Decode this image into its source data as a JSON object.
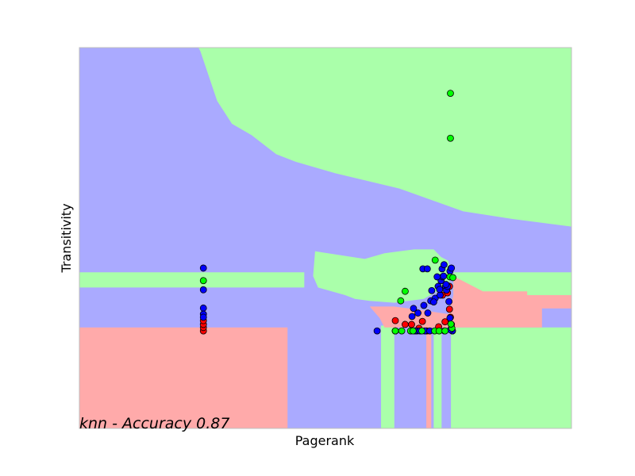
{
  "chart_data": {
    "type": "scatter",
    "title": "",
    "xlabel": "Pagerank",
    "ylabel": "Transitivity",
    "annotation": "knn - Accuracy 0.87",
    "xlim": [
      0,
      100
    ],
    "ylim": [
      0,
      100
    ],
    "ticks_visible": false,
    "grid": false,
    "legend": "none",
    "region_colors": {
      "red": "#ffaaaa",
      "blue": "#aaaaff",
      "green": "#aaffaa"
    },
    "frame_color": "#bfbfbf",
    "regions": {
      "note": "decision-surface polygons in data units (x 0-100, y 0-100 bottom-up)",
      "blue_background": [
        [
          0,
          0
        ],
        [
          100,
          0
        ],
        [
          100,
          100
        ],
        [
          0,
          100
        ]
      ],
      "green": [
        [
          [
            24.2,
            100
          ],
          [
            100,
            100
          ],
          [
            100,
            53
          ],
          [
            88,
            55
          ],
          [
            78,
            57
          ],
          [
            65,
            63
          ],
          [
            52,
            67
          ],
          [
            44,
            70
          ],
          [
            40,
            72
          ],
          [
            35,
            77
          ],
          [
            31,
            80
          ],
          [
            28,
            86
          ],
          [
            24.6,
            99
          ]
        ],
        [
          [
            0,
            37
          ],
          [
            45.7,
            37
          ],
          [
            45.7,
            41
          ],
          [
            0,
            41
          ]
        ],
        [
          [
            47.9,
            46.5
          ],
          [
            53,
            45.5
          ],
          [
            58,
            44.5
          ],
          [
            62,
            46
          ],
          [
            68,
            47
          ],
          [
            72,
            47
          ],
          [
            73.5,
            45
          ],
          [
            75,
            44
          ],
          [
            75.5,
            39
          ],
          [
            74,
            37
          ],
          [
            70,
            34
          ],
          [
            64,
            33
          ],
          [
            59,
            33.5
          ],
          [
            56,
            34
          ],
          [
            54,
            35
          ],
          [
            48.5,
            37
          ],
          [
            47.5,
            40
          ]
        ],
        [
          [
            76,
            41
          ],
          [
            100,
            41
          ],
          [
            100,
            35
          ],
          [
            76,
            35
          ]
        ],
        [
          [
            61.3,
            0
          ],
          [
            64,
            0
          ],
          [
            64,
            27
          ],
          [
            61.3,
            27
          ]
        ],
        [
          [
            72,
            0
          ],
          [
            73.6,
            0
          ],
          [
            73.6,
            27
          ],
          [
            72,
            27
          ]
        ],
        [
          [
            75.5,
            0
          ],
          [
            100,
            0
          ],
          [
            100,
            26.5
          ],
          [
            75.5,
            26.5
          ]
        ]
      ],
      "red": [
        [
          [
            0,
            0
          ],
          [
            42.3,
            0
          ],
          [
            42.3,
            26.5
          ],
          [
            0,
            26.5
          ]
        ],
        [
          [
            59,
            32
          ],
          [
            64,
            32
          ],
          [
            70,
            31
          ],
          [
            75,
            30
          ],
          [
            76,
            35
          ],
          [
            76,
            40
          ],
          [
            79,
            38
          ],
          [
            82,
            36
          ],
          [
            91,
            36
          ],
          [
            91,
            35
          ],
          [
            100,
            35
          ],
          [
            100,
            31.5
          ],
          [
            94,
            31.5
          ],
          [
            94,
            26.5
          ],
          [
            75.5,
            26.5
          ],
          [
            62,
            26.5
          ],
          [
            61,
            29
          ]
        ],
        [
          [
            70.5,
            0
          ],
          [
            71.5,
            0
          ],
          [
            71.5,
            26.5
          ],
          [
            70.5,
            26.5
          ]
        ]
      ]
    },
    "series": [
      {
        "color": "#ff0000",
        "points": [
          [
            25.2,
            25.6
          ],
          [
            25.2,
            26.5
          ],
          [
            25.2,
            27.3
          ],
          [
            25.2,
            28.3
          ],
          [
            64.2,
            25.6
          ],
          [
            64.2,
            28.3
          ],
          [
            66.2,
            27.3
          ],
          [
            67.5,
            27.3
          ],
          [
            69,
            26.3
          ],
          [
            69.7,
            28.1
          ],
          [
            70.6,
            25.6
          ],
          [
            73,
            26.7
          ],
          [
            73.8,
            35
          ],
          [
            74.3,
            28
          ],
          [
            74.8,
            35.6
          ],
          [
            75.2,
            31.3
          ],
          [
            75.4,
            29.2
          ],
          [
            75.6,
            27.3
          ],
          [
            75.2,
            37.3
          ],
          [
            75.8,
            25.6
          ]
        ]
      },
      {
        "color": "#0000ff",
        "points": [
          [
            25.2,
            42.1
          ],
          [
            25.2,
            36.4
          ],
          [
            25.2,
            31.6
          ],
          [
            25.2,
            30
          ],
          [
            25.2,
            29.2
          ],
          [
            64.2,
            25.6
          ],
          [
            67.6,
            29.4
          ],
          [
            68.6,
            25.6
          ],
          [
            68.8,
            30.3
          ],
          [
            68.2,
            25.6
          ],
          [
            69.2,
            25.6
          ],
          [
            70.2,
            25.6
          ],
          [
            71.2,
            25.6
          ],
          [
            75.8,
            25.6
          ],
          [
            75.4,
            25.9
          ],
          [
            60.5,
            25.6
          ],
          [
            67.9,
            31.5
          ],
          [
            70.8,
            30.3
          ],
          [
            70,
            32.3
          ],
          [
            71.4,
            33.5
          ],
          [
            72.3,
            34.2
          ],
          [
            73.3,
            35
          ],
          [
            73.5,
            38.8
          ],
          [
            73.8,
            39.8
          ],
          [
            74,
            40
          ],
          [
            74.4,
            37.3
          ],
          [
            74.6,
            36.3
          ],
          [
            74.8,
            37.3
          ],
          [
            75.1,
            33.3
          ],
          [
            75.5,
            42
          ],
          [
            71.6,
            36.2
          ],
          [
            72.9,
            37.3
          ],
          [
            73.2,
            36.5
          ],
          [
            72.7,
            39.8
          ],
          [
            73.7,
            41.9
          ],
          [
            74.1,
            43
          ],
          [
            75.3,
            41.3
          ],
          [
            75.6,
            42.1
          ],
          [
            69.8,
            41.9
          ],
          [
            70.7,
            41.9
          ],
          [
            72,
            33.2
          ],
          [
            74.5,
            37.8
          ],
          [
            75.3,
            29
          ],
          [
            74.2,
            25.6
          ]
        ]
      },
      {
        "color": "#00ff00",
        "points": [
          [
            25.2,
            38.8
          ],
          [
            64.2,
            25.6
          ],
          [
            65.5,
            25.6
          ],
          [
            67.3,
            25.6
          ],
          [
            67.8,
            25.6
          ],
          [
            69.6,
            25.6
          ],
          [
            72.2,
            25.6
          ],
          [
            73.1,
            25.6
          ],
          [
            74.3,
            25.6
          ],
          [
            75.7,
            26.3
          ],
          [
            75.5,
            27.4
          ],
          [
            75.3,
            39.8
          ],
          [
            75.9,
            39.6
          ],
          [
            65.3,
            33.5
          ],
          [
            66.2,
            36
          ],
          [
            72.3,
            44.2
          ],
          [
            75.4,
            76.2
          ],
          [
            75.4,
            88
          ]
        ]
      }
    ]
  }
}
